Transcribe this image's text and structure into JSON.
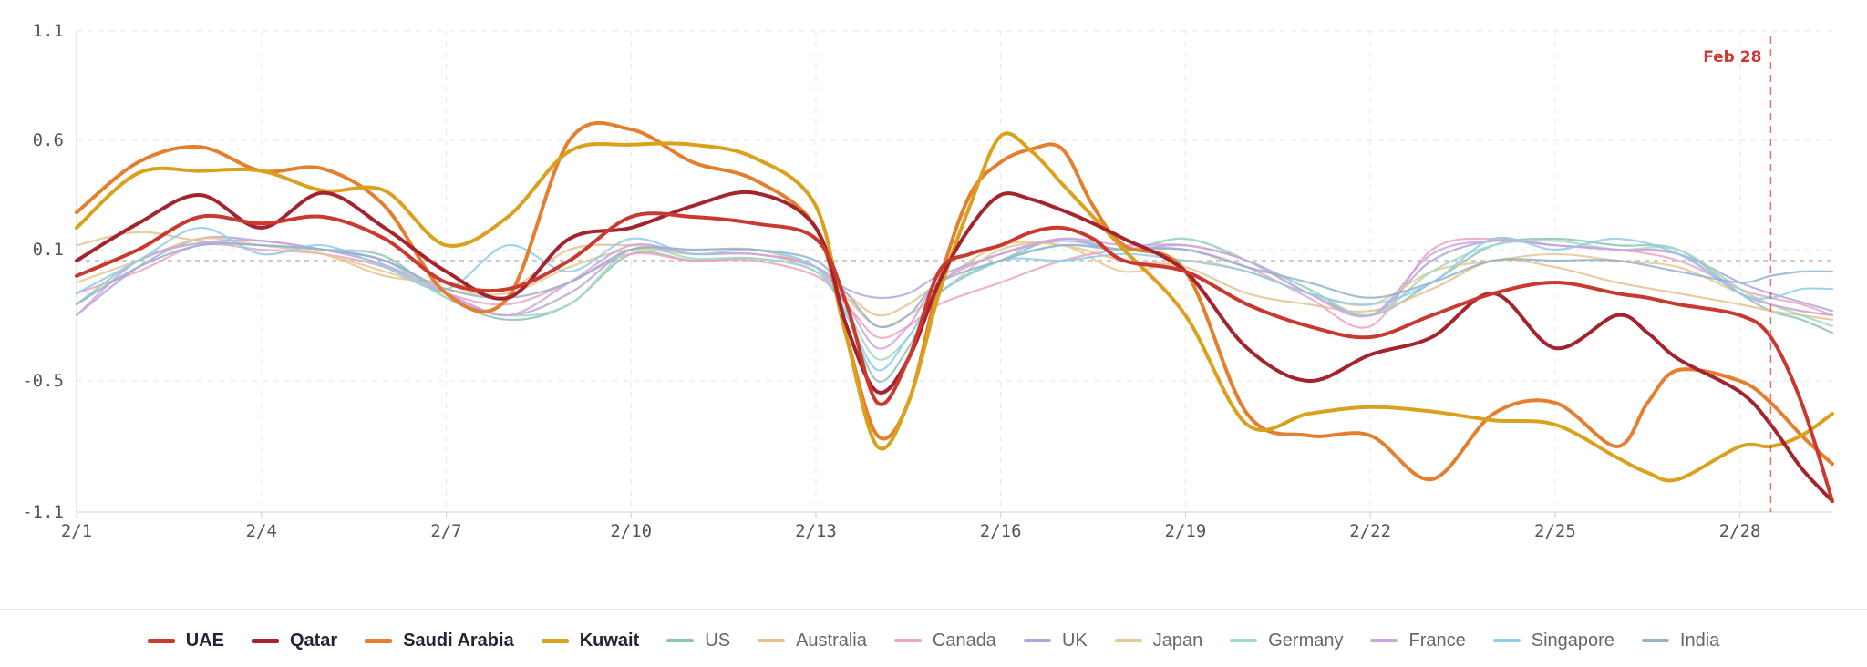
{
  "chart_data": {
    "type": "line",
    "title": "",
    "xlabel": "",
    "ylabel": "",
    "ylim": [
      -1.1,
      1.1
    ],
    "y_ticks": [
      1.1,
      0.6,
      0.1,
      -0.5,
      -1.1
    ],
    "y_tick_labels": [
      "1.1",
      "0.6",
      "0.1",
      "-0.5",
      "-1.1"
    ],
    "xlim": [
      1,
      29.5
    ],
    "x_ticks": [
      1,
      4,
      7,
      10,
      13,
      16,
      19,
      22,
      25,
      28
    ],
    "x_tick_labels": [
      "2/1",
      "2/4",
      "2/7",
      "2/10",
      "2/13",
      "2/16",
      "2/19",
      "2/22",
      "2/25",
      "2/28"
    ],
    "grid": true,
    "reference_line_y": 0.05,
    "annotation": {
      "x": 28.5,
      "label": "Feb 28",
      "color": "#cc3a34"
    },
    "legend_position": "bottom-center",
    "series": [
      {
        "name": "US",
        "color": "#8ec3b7",
        "primary": false,
        "x": [
          1,
          2,
          3,
          4,
          5,
          6,
          7,
          8,
          9,
          10,
          11,
          12,
          13,
          13.5,
          14,
          14.5,
          15,
          16,
          17,
          18,
          19,
          20,
          21,
          22,
          23,
          24,
          25,
          26,
          27,
          28,
          28.5,
          29,
          29.5
        ],
        "y": [
          -0.15,
          0.05,
          0.13,
          0.12,
          0.1,
          0.07,
          -0.12,
          -0.22,
          -0.15,
          0.08,
          0.05,
          0.06,
          0.0,
          -0.2,
          -0.5,
          -0.35,
          -0.1,
          0.05,
          0.15,
          0.1,
          0.15,
          0.05,
          -0.1,
          -0.2,
          -0.05,
          0.12,
          0.15,
          0.12,
          0.1,
          -0.1,
          -0.18,
          -0.22,
          -0.28
        ]
      },
      {
        "name": "Australia",
        "color": "#e6c18f",
        "primary": false,
        "x": [
          1,
          2,
          3,
          4,
          5,
          6,
          7,
          8,
          9,
          10,
          11,
          12,
          13,
          13.5,
          14,
          14.5,
          15,
          16,
          17,
          18,
          19,
          20,
          21,
          22,
          23,
          24,
          25,
          26,
          27,
          28,
          28.5,
          29,
          29.5
        ],
        "y": [
          0.12,
          0.18,
          0.14,
          0.12,
          0.08,
          -0.02,
          -0.05,
          -0.08,
          0.1,
          0.12,
          0.1,
          0.1,
          0.02,
          -0.1,
          -0.2,
          -0.15,
          -0.05,
          0.12,
          0.12,
          0.05,
          0.02,
          -0.1,
          -0.15,
          -0.18,
          -0.08,
          0.05,
          0.02,
          -0.05,
          -0.1,
          -0.15,
          -0.18,
          -0.2,
          -0.22
        ]
      },
      {
        "name": "Canada",
        "color": "#eda3c1",
        "primary": false,
        "x": [
          1,
          2,
          3,
          4,
          5,
          6,
          7,
          8,
          9,
          10,
          11,
          12,
          13,
          13.5,
          14,
          14.5,
          15,
          16,
          17,
          18,
          19,
          20,
          21,
          22,
          23,
          24,
          25,
          26,
          27,
          28,
          28.5,
          29,
          29.5
        ],
        "y": [
          -0.1,
          0.0,
          0.12,
          0.1,
          0.08,
          0.02,
          -0.1,
          -0.15,
          -0.05,
          0.08,
          0.05,
          0.05,
          -0.02,
          -0.15,
          -0.3,
          -0.25,
          -0.15,
          -0.05,
          0.05,
          0.1,
          0.1,
          0.02,
          -0.12,
          -0.25,
          0.1,
          0.15,
          0.12,
          0.1,
          0.05,
          -0.08,
          -0.12,
          -0.15,
          -0.2
        ]
      },
      {
        "name": "UK",
        "color": "#b3a6de",
        "primary": false,
        "x": [
          1,
          2,
          3,
          4,
          5,
          6,
          7,
          8,
          9,
          10,
          11,
          12,
          13,
          13.5,
          14,
          14.5,
          15,
          16,
          17,
          18,
          19,
          20,
          21,
          22,
          23,
          24,
          25,
          26,
          27,
          28,
          28.5,
          29,
          29.5
        ],
        "y": [
          -0.2,
          0.02,
          0.15,
          0.14,
          0.1,
          0.03,
          -0.1,
          -0.2,
          -0.1,
          0.1,
          0.08,
          0.08,
          0.02,
          -0.08,
          -0.12,
          -0.1,
          -0.02,
          0.08,
          0.14,
          0.1,
          0.12,
          0.05,
          -0.08,
          -0.2,
          0.05,
          0.14,
          0.12,
          0.1,
          0.08,
          -0.05,
          -0.1,
          -0.14,
          -0.18
        ]
      },
      {
        "name": "Japan",
        "color": "#e9c891",
        "primary": false,
        "x": [
          1,
          2,
          3,
          4,
          5,
          6,
          7,
          8,
          9,
          10,
          11,
          12,
          13,
          13.5,
          14,
          14.5,
          15,
          16,
          17,
          18,
          19,
          20,
          21,
          22,
          23,
          24,
          25,
          26,
          27,
          28,
          28.5,
          29,
          29.5
        ],
        "y": [
          -0.05,
          0.05,
          0.15,
          0.12,
          0.08,
          0.0,
          -0.08,
          -0.1,
          0.02,
          0.1,
          0.08,
          0.08,
          0.02,
          -0.12,
          -0.25,
          -0.2,
          -0.1,
          0.1,
          0.12,
          0.0,
          0.05,
          0.0,
          -0.1,
          -0.15,
          0.0,
          0.05,
          0.08,
          0.05,
          0.02,
          -0.1,
          -0.15,
          -0.18,
          -0.2
        ]
      },
      {
        "name": "Germany",
        "color": "#a3dbbf",
        "primary": false,
        "x": [
          1,
          2,
          3,
          4,
          5,
          6,
          7,
          8,
          9,
          10,
          11,
          12,
          13,
          13.5,
          14,
          14.5,
          15,
          16,
          17,
          18,
          19,
          20,
          21,
          22,
          23,
          24,
          25,
          26,
          27,
          28,
          28.5,
          29,
          29.5
        ],
        "y": [
          -0.15,
          0.05,
          0.13,
          0.12,
          0.1,
          0.05,
          -0.12,
          -0.2,
          -0.15,
          0.1,
          0.06,
          0.06,
          0.0,
          -0.18,
          -0.4,
          -0.3,
          -0.1,
          0.05,
          0.12,
          0.1,
          0.15,
          0.05,
          -0.08,
          -0.2,
          0.0,
          0.12,
          0.14,
          0.1,
          0.1,
          -0.08,
          -0.15,
          -0.2,
          -0.25
        ]
      },
      {
        "name": "France",
        "color": "#cfa3df",
        "primary": false,
        "x": [
          1,
          2,
          3,
          4,
          5,
          6,
          7,
          8,
          9,
          10,
          11,
          12,
          13,
          13.5,
          14,
          14.5,
          15,
          16,
          17,
          18,
          19,
          20,
          21,
          22,
          23,
          24,
          25,
          26,
          27,
          28,
          28.5,
          29,
          29.5
        ],
        "y": [
          -0.2,
          0.05,
          0.13,
          0.14,
          0.1,
          0.05,
          -0.1,
          -0.2,
          -0.05,
          0.12,
          0.08,
          0.08,
          0.02,
          -0.15,
          -0.35,
          -0.25,
          -0.05,
          0.08,
          0.15,
          0.12,
          0.12,
          0.05,
          -0.1,
          -0.2,
          0.08,
          0.14,
          0.12,
          0.1,
          0.08,
          -0.1,
          -0.15,
          -0.18,
          -0.2
        ]
      },
      {
        "name": "Singapore",
        "color": "#8fcde9",
        "primary": false,
        "x": [
          1,
          2,
          3,
          4,
          5,
          6,
          7,
          8,
          9,
          10,
          11,
          12,
          13,
          13.5,
          14,
          14.5,
          15,
          16,
          17,
          18,
          19,
          20,
          21,
          22,
          23,
          24,
          25,
          26,
          27,
          28,
          28.5,
          29,
          29.5
        ],
        "y": [
          -0.1,
          0.05,
          0.2,
          0.08,
          0.12,
          0.02,
          -0.08,
          0.12,
          0.0,
          0.15,
          0.08,
          0.1,
          0.02,
          -0.2,
          -0.45,
          -0.3,
          -0.1,
          0.05,
          0.05,
          0.08,
          0.05,
          0.0,
          -0.1,
          -0.15,
          -0.05,
          0.15,
          0.1,
          0.15,
          0.08,
          -0.1,
          -0.12,
          -0.08,
          -0.08
        ]
      },
      {
        "name": "India",
        "color": "#93b3cf",
        "primary": false,
        "x": [
          1,
          2,
          3,
          4,
          5,
          6,
          7,
          8,
          9,
          10,
          11,
          12,
          13,
          13.5,
          14,
          14.5,
          15,
          16,
          17,
          18,
          19,
          20,
          21,
          22,
          23,
          24,
          25,
          26,
          27,
          28,
          28.5,
          29,
          29.5
        ],
        "y": [
          -0.15,
          0.02,
          0.12,
          0.12,
          0.1,
          0.05,
          -0.08,
          -0.12,
          -0.05,
          0.1,
          0.1,
          0.1,
          0.05,
          -0.1,
          -0.25,
          -0.2,
          -0.05,
          0.05,
          0.12,
          0.1,
          0.1,
          0.02,
          -0.05,
          -0.12,
          -0.05,
          0.05,
          0.05,
          0.05,
          0.0,
          -0.05,
          -0.02,
          0.0,
          0.0
        ]
      },
      {
        "name": "Saudi Arabia",
        "color": "#e37f2e",
        "primary": true,
        "x": [
          1,
          2,
          3,
          4,
          5,
          6,
          7,
          8,
          9,
          10,
          11,
          12,
          13,
          13.5,
          14,
          14.5,
          15,
          15.5,
          16,
          16.5,
          17,
          17.5,
          18,
          19,
          20,
          21,
          22,
          23,
          24,
          25,
          26,
          26.5,
          27,
          28,
          28.5,
          29,
          29.5
        ],
        "y": [
          0.27,
          0.5,
          0.57,
          0.46,
          0.47,
          0.3,
          -0.1,
          -0.12,
          0.6,
          0.65,
          0.5,
          0.42,
          0.2,
          -0.3,
          -0.75,
          -0.6,
          -0.05,
          0.35,
          0.5,
          0.56,
          0.56,
          0.3,
          0.12,
          0.0,
          -0.65,
          -0.75,
          -0.75,
          -0.95,
          -0.65,
          -0.6,
          -0.8,
          -0.6,
          -0.45,
          -0.5,
          -0.6,
          -0.75,
          -0.88
        ]
      },
      {
        "name": "Kuwait",
        "color": "#d9a11d",
        "primary": true,
        "x": [
          1,
          2,
          3,
          4,
          5,
          6,
          7,
          8,
          9,
          10,
          11,
          12,
          13,
          13.5,
          14,
          14.5,
          15,
          15.5,
          16,
          16.5,
          17,
          17.5,
          18,
          19,
          20,
          21,
          22,
          23,
          24,
          25,
          26,
          26.5,
          27,
          28,
          28.5,
          29,
          29.5
        ],
        "y": [
          0.2,
          0.45,
          0.46,
          0.46,
          0.37,
          0.37,
          0.12,
          0.25,
          0.55,
          0.58,
          0.58,
          0.52,
          0.3,
          -0.3,
          -0.8,
          -0.6,
          -0.1,
          0.3,
          0.62,
          0.55,
          0.4,
          0.25,
          0.1,
          -0.2,
          -0.7,
          -0.65,
          -0.62,
          -0.64,
          -0.68,
          -0.7,
          -0.85,
          -0.92,
          -0.95,
          -0.8,
          -0.8,
          -0.75,
          -0.65
        ]
      },
      {
        "name": "Qatar",
        "color": "#a3232e",
        "primary": true,
        "x": [
          1,
          2,
          3,
          4,
          5,
          6,
          7,
          8,
          9,
          10,
          11,
          12,
          13,
          13.5,
          14,
          14.5,
          15,
          15.5,
          16,
          16.5,
          17,
          17.5,
          18,
          19,
          20,
          21,
          22,
          23,
          24,
          25,
          26,
          26.5,
          27,
          28,
          28.5,
          29,
          29.5
        ],
        "y": [
          0.05,
          0.22,
          0.35,
          0.2,
          0.36,
          0.2,
          0.0,
          -0.12,
          0.15,
          0.2,
          0.3,
          0.36,
          0.2,
          -0.25,
          -0.55,
          -0.4,
          -0.05,
          0.2,
          0.35,
          0.33,
          0.28,
          0.22,
          0.15,
          0.0,
          -0.35,
          -0.5,
          -0.38,
          -0.3,
          -0.1,
          -0.35,
          -0.2,
          -0.28,
          -0.4,
          -0.55,
          -0.7,
          -0.9,
          -1.05
        ]
      },
      {
        "name": "UAE",
        "color": "#c9392f",
        "primary": true,
        "x": [
          1,
          2,
          3,
          4,
          5,
          6,
          7,
          8,
          9,
          10,
          11,
          12,
          13,
          13.5,
          14,
          14.5,
          15,
          15.5,
          16,
          16.5,
          17,
          17.5,
          18,
          19,
          20,
          21,
          22,
          23,
          24,
          25,
          26,
          26.5,
          27,
          28,
          28.5,
          29,
          29.5
        ],
        "y": [
          -0.02,
          0.1,
          0.25,
          0.22,
          0.25,
          0.15,
          -0.05,
          -0.08,
          0.05,
          0.25,
          0.25,
          0.22,
          0.15,
          -0.15,
          -0.6,
          -0.4,
          0.0,
          0.08,
          0.12,
          0.18,
          0.2,
          0.15,
          0.05,
          0.0,
          -0.15,
          -0.25,
          -0.3,
          -0.2,
          -0.1,
          -0.05,
          -0.1,
          -0.12,
          -0.15,
          -0.2,
          -0.3,
          -0.6,
          -1.05
        ]
      }
    ]
  },
  "legend": {
    "items": [
      {
        "label": "UAE",
        "color": "#c9392f",
        "primary": true
      },
      {
        "label": "Qatar",
        "color": "#a3232e",
        "primary": true
      },
      {
        "label": "Saudi Arabia",
        "color": "#e37f2e",
        "primary": true
      },
      {
        "label": "Kuwait",
        "color": "#d9a11d",
        "primary": true
      },
      {
        "label": "US",
        "color": "#8ec3b7",
        "primary": false
      },
      {
        "label": "Australia",
        "color": "#e6c18f",
        "primary": false
      },
      {
        "label": "Canada",
        "color": "#eda3c1",
        "primary": false
      },
      {
        "label": "UK",
        "color": "#b3a6de",
        "primary": false
      },
      {
        "label": "Japan",
        "color": "#e9c891",
        "primary": false
      },
      {
        "label": "Germany",
        "color": "#a3dbbf",
        "primary": false
      },
      {
        "label": "France",
        "color": "#cfa3df",
        "primary": false
      },
      {
        "label": "Singapore",
        "color": "#8fcde9",
        "primary": false
      },
      {
        "label": "India",
        "color": "#93b3cf",
        "primary": false
      }
    ]
  }
}
